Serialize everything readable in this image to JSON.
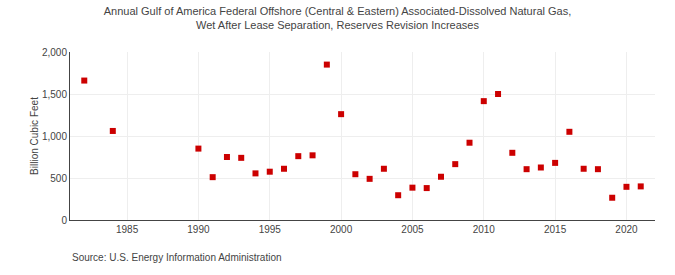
{
  "chart_data": {
    "type": "scatter",
    "title": "Annual Gulf of America Federal Offshore (Central & Eastern) Associated-Dissolved Natural Gas,\nWet After Lease Separation, Reserves Revision Increases",
    "ylabel": "Billion Cubic Feet",
    "annotations": [
      "Source: U.S. Energy Information Administration"
    ],
    "x": [
      1982,
      1984,
      1990,
      1991,
      1992,
      1993,
      1994,
      1995,
      1996,
      1997,
      1998,
      1999,
      2000,
      2001,
      2002,
      2003,
      2004,
      2005,
      2006,
      2007,
      2008,
      2009,
      2010,
      2011,
      2012,
      2013,
      2014,
      2015,
      2016,
      2017,
      2018,
      2019,
      2020,
      2021
    ],
    "values": [
      1660,
      1060,
      850,
      510,
      750,
      740,
      555,
      575,
      610,
      760,
      770,
      1850,
      1260,
      545,
      490,
      610,
      295,
      385,
      380,
      515,
      665,
      920,
      1415,
      1500,
      800,
      605,
      625,
      680,
      1050,
      610,
      605,
      265,
      395,
      400
    ],
    "color": "#cc0000",
    "marker": "square",
    "xlim": [
      1981,
      2022
    ],
    "xticks": [
      1985,
      1990,
      1995,
      2000,
      2005,
      2010,
      2015,
      2020
    ],
    "ylim": [
      0,
      2000
    ],
    "yticks": [
      0,
      500,
      {
        "value": 1000,
        "label": "1,000"
      },
      {
        "value": 1500,
        "label": "1,500"
      },
      {
        "value": 2000,
        "label": "2,000"
      }
    ],
    "grid": true
  }
}
